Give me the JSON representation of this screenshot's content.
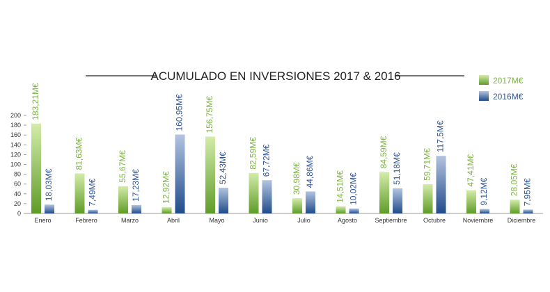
{
  "chart_data": {
    "type": "bar",
    "title": "ACUMULADO EN INVERSIONES 2017 & 2016",
    "categories": [
      "Enero",
      "Febrero",
      "Marzo",
      "Abril",
      "Mayo",
      "Junio",
      "Julio",
      "Agosto",
      "Septiembre",
      "Octubre",
      "Noviembre",
      "Diciembre"
    ],
    "series": [
      {
        "name": "2017M€",
        "color": "#7cb342",
        "values": [
          183.21,
          81.63,
          55.67,
          12.92,
          156.75,
          82.59,
          30.98,
          14.51,
          84.59,
          59.71,
          47.41,
          28.05
        ],
        "labels": [
          "183,21M€",
          "81,63M€",
          "55,67M€",
          "12,92M€",
          "156,75M€",
          "82,59M€",
          "30,98M€",
          "14,51M€",
          "84,59M€",
          "59,71M€",
          "47,41M€",
          "28,05M€"
        ]
      },
      {
        "name": "2016M€",
        "color": "#2f5597",
        "values": [
          18.03,
          7.49,
          17.23,
          160.95,
          52.43,
          67.72,
          44.86,
          10.02,
          51.18,
          117.5,
          9.12,
          7.95
        ],
        "labels": [
          "18,03M€",
          "7,49M€",
          "17,23M€",
          "160,95M€",
          "52,43M€",
          "67,72M€",
          "44,86M€",
          "10,02M€",
          "51,18M€",
          "117,5M€",
          "9,12M€",
          "7,95M€"
        ]
      }
    ],
    "yticks": [
      0,
      20,
      40,
      60,
      80,
      100,
      120,
      140,
      160,
      180,
      200
    ],
    "ylim": [
      0,
      200
    ],
    "grid": false,
    "legend_position": "top-right"
  }
}
